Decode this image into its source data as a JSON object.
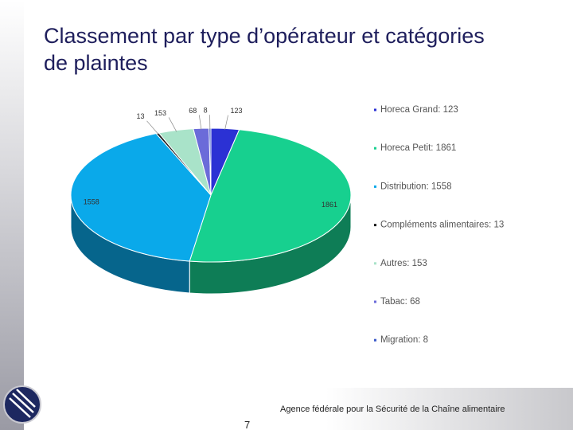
{
  "chart_data": {
    "type": "pie",
    "title": "Classement par type d’opérateur et catégories de plaintes",
    "labels": [
      "Horeca Grand: 123",
      "Horeca Petit: 1861",
      "Distribution: 1558",
      "Compléments alimentaires: 13",
      "Autres: 153",
      "Tabac: 68",
      "Migration: 8"
    ],
    "values": [
      123,
      1861,
      1558,
      13,
      153,
      68,
      8
    ],
    "colors": [
      "#2b31d4",
      "#17d08f",
      "#0aa9ea",
      "#1c1c1c",
      "#a9e3c9",
      "#6b6bd9",
      "#3a59c9"
    ],
    "legend": "right"
  },
  "footer": "Agence fédérale pour la Sécurité de la Chaîne alimentaire",
  "page_number": "7"
}
